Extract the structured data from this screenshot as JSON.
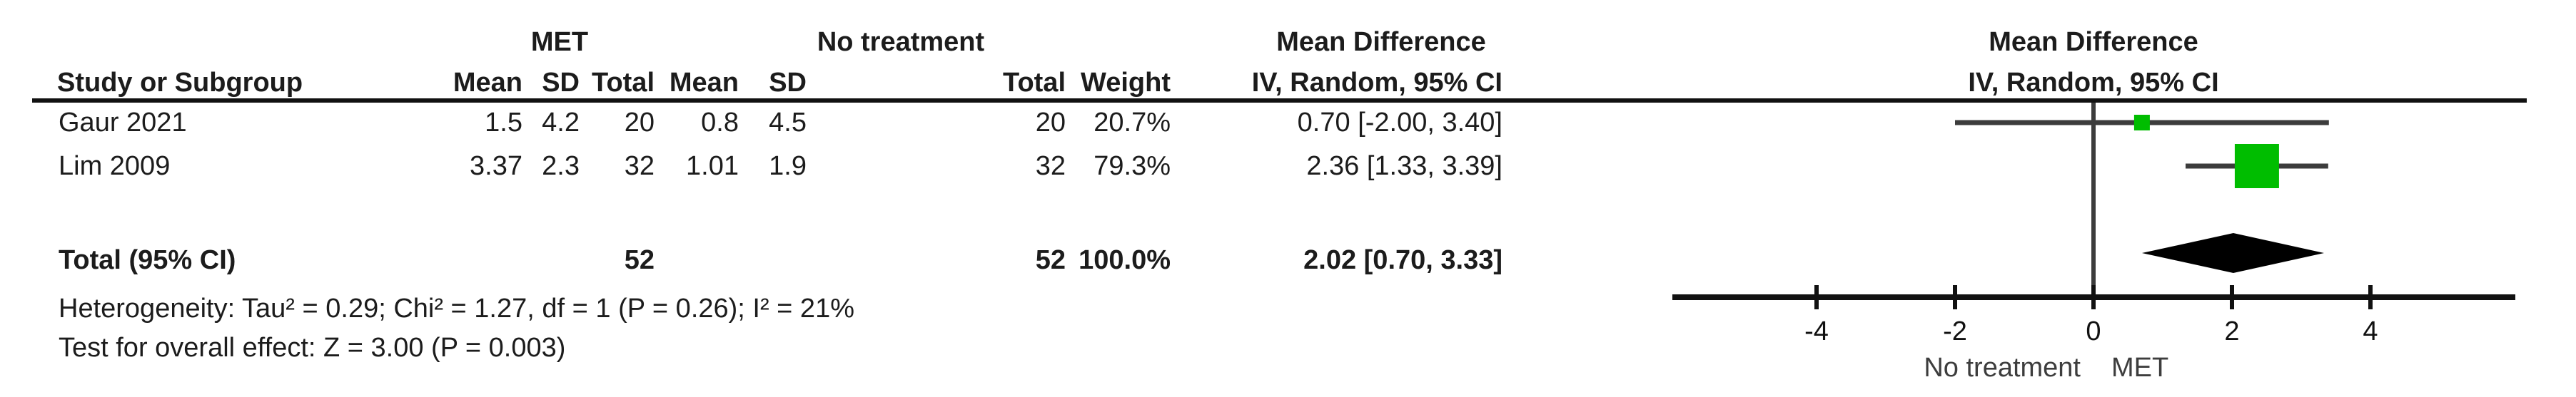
{
  "table": {
    "group_headers": {
      "met": "MET",
      "control": "No treatment",
      "md_table": "Mean Difference",
      "md_plot": "Mean Difference"
    },
    "col_headers": {
      "study": "Study or Subgroup",
      "met_mean": "Mean",
      "met_sd": "SD",
      "met_total": "Total",
      "ctl_mean": "Mean",
      "ctl_sd": "SD",
      "ctl_total": "Total",
      "weight": "Weight",
      "ci": "IV, Random, 95% CI",
      "ci_plot": "IV, Random, 95% CI"
    },
    "rows": [
      {
        "study": "Gaur 2021",
        "met_mean": "1.5",
        "met_sd": "4.2",
        "met_total": "20",
        "ctl_mean": "0.8",
        "ctl_sd": "4.5",
        "ctl_total": "20",
        "weight": "20.7%",
        "ci_text": "0.70 [-2.00, 3.40]"
      },
      {
        "study": "Lim 2009",
        "met_mean": "3.37",
        "met_sd": "2.3",
        "met_total": "32",
        "ctl_mean": "1.01",
        "ctl_sd": "1.9",
        "ctl_total": "32",
        "weight": "79.3%",
        "ci_text": "2.36 [1.33, 3.39]"
      }
    ],
    "total": {
      "label": "Total (95% CI)",
      "met_total": "52",
      "ctl_total": "52",
      "weight": "100.0%",
      "ci_text": "2.02 [0.70, 3.33]"
    },
    "heterogeneity": "Heterogeneity: Tau² = 0.29; Chi² = 1.27, df = 1 (P = 0.26); I² = 21%",
    "overall_effect": "Test for overall effect: Z = 3.00 (P = 0.003)"
  },
  "chart_data": {
    "type": "scatter",
    "subtype": "forest-plot",
    "effect_measure": "Mean Difference, IV, Random, 95% CI",
    "x_axis": {
      "ticks": [
        -4,
        -2,
        0,
        2,
        4
      ],
      "tick_labels": [
        "-4",
        "-2",
        "0",
        "2",
        "4"
      ],
      "range_shown": [
        -6.1,
        6.1
      ],
      "zero_line": 0
    },
    "studies": [
      {
        "name": "Gaur 2021",
        "md": 0.7,
        "ci_low": -2.0,
        "ci_high": 3.4,
        "weight_pct": 20.7
      },
      {
        "name": "Lim 2009",
        "md": 2.36,
        "ci_low": 1.33,
        "ci_high": 3.39,
        "weight_pct": 79.3
      }
    ],
    "summary": {
      "name": "Total (95% CI)",
      "md": 2.02,
      "ci_low": 0.7,
      "ci_high": 3.33,
      "weight_pct": 100.0
    },
    "favours_left_label": "No treatment",
    "favours_right_label": "MET"
  },
  "colors": {
    "marker_green": "#00BD00",
    "axis_black": "#111111",
    "ci_line_gray": "#3c3c3c",
    "footer_gray": "#3d3d3d"
  }
}
